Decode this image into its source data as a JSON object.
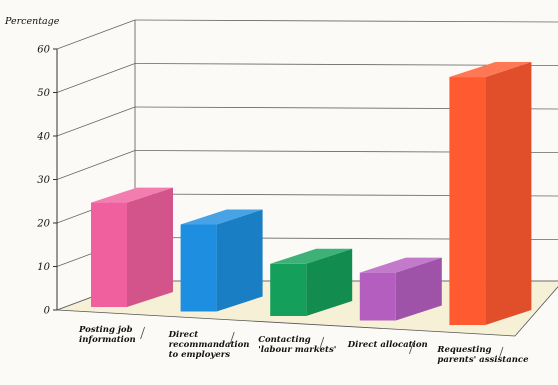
{
  "chart_data": {
    "type": "bar",
    "title": "",
    "ylabel": "Percentage",
    "xlabel": "",
    "ylim": [
      0,
      60
    ],
    "yticks": [
      0,
      10,
      20,
      30,
      40,
      50,
      60
    ],
    "grid": true,
    "categories": [
      [
        "Posting job",
        "information"
      ],
      [
        "Direct",
        "recommandation",
        "to employers"
      ],
      [
        "Contacting",
        "'labour markets'"
      ],
      [
        "Direct allocation"
      ],
      [
        "Requesting",
        "parents' assistance"
      ]
    ],
    "values": [
      24,
      20,
      12,
      11,
      57
    ],
    "colors": [
      "#f0609e",
      "#1e8fe0",
      "#14a05a",
      "#b45ec0",
      "#ff5a30"
    ],
    "floor_color": "#f6f0d6"
  }
}
